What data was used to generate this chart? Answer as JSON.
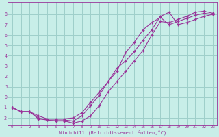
{
  "background_color": "#c8eee8",
  "grid_color": "#9ecfca",
  "line_color": "#993399",
  "xlabel": "Windchill (Refroidissement éolien,°C)",
  "xlim": [
    -0.5,
    23.5
  ],
  "ylim": [
    -2.7,
    9.2
  ],
  "xticks": [
    0,
    1,
    2,
    3,
    4,
    5,
    6,
    7,
    8,
    9,
    10,
    11,
    12,
    13,
    14,
    15,
    16,
    17,
    18,
    19,
    20,
    21,
    22,
    23
  ],
  "yticks": [
    -2,
    -1,
    0,
    1,
    2,
    3,
    4,
    5,
    6,
    7,
    8
  ],
  "line1_x": [
    0,
    1,
    2,
    3,
    4,
    5,
    6,
    7,
    8,
    9,
    10,
    11,
    12,
    13,
    14,
    15,
    16,
    17,
    18,
    19,
    20,
    21,
    22,
    23
  ],
  "line1_y": [
    -1.0,
    -1.4,
    -1.4,
    -2.1,
    -2.2,
    -2.3,
    -2.3,
    -2.5,
    -2.3,
    -1.8,
    -0.8,
    0.5,
    1.5,
    2.5,
    3.5,
    4.5,
    6.0,
    7.3,
    7.2,
    7.5,
    7.8,
    8.2,
    8.3,
    8.1
  ],
  "line2_x": [
    0,
    1,
    2,
    3,
    4,
    5,
    6,
    7,
    8,
    9,
    10,
    11,
    12,
    13,
    14,
    15,
    16,
    17,
    18,
    19,
    20,
    21,
    22,
    23
  ],
  "line2_y": [
    -1.0,
    -1.4,
    -1.4,
    -2.0,
    -2.2,
    -2.2,
    -2.2,
    -2.3,
    -1.8,
    -0.8,
    0.2,
    1.5,
    2.8,
    3.5,
    4.4,
    5.5,
    6.5,
    7.8,
    8.2,
    7.0,
    7.2,
    7.5,
    7.8,
    8.0
  ],
  "line3_x": [
    0,
    1,
    2,
    3,
    4,
    5,
    6,
    7,
    8,
    9,
    10,
    11,
    12,
    13,
    14,
    15,
    16,
    17,
    18,
    19,
    20,
    21,
    22,
    23
  ],
  "line3_y": [
    -1.0,
    -1.4,
    -1.4,
    -1.8,
    -2.1,
    -2.1,
    -2.1,
    -2.0,
    -1.5,
    -0.5,
    0.5,
    1.5,
    2.5,
    4.3,
    5.3,
    6.5,
    7.2,
    7.7,
    7.0,
    7.3,
    7.6,
    7.9,
    8.1,
    8.0
  ]
}
